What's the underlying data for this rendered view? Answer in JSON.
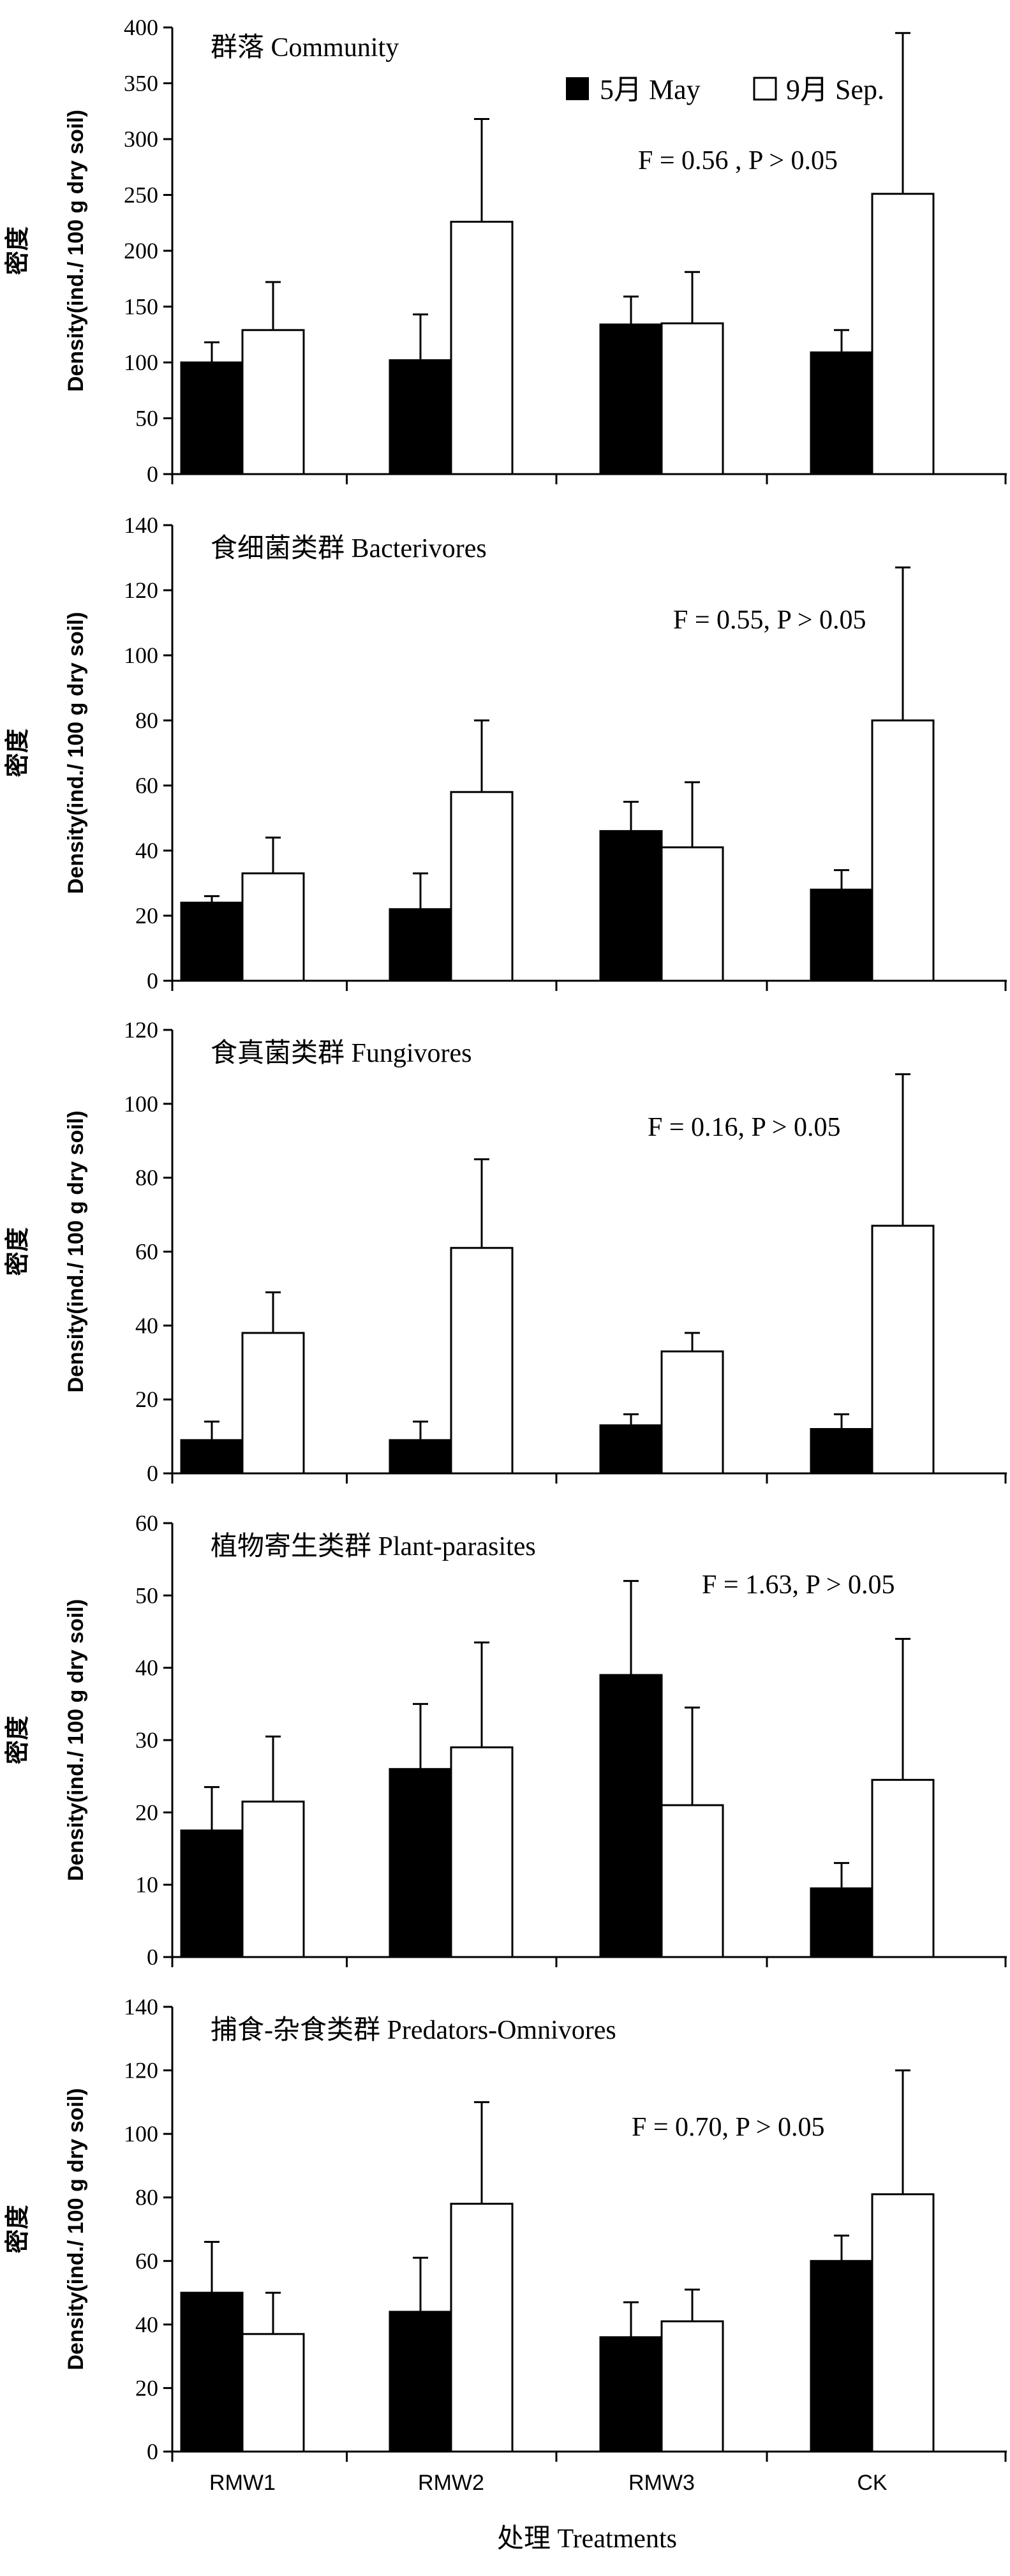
{
  "figure": {
    "legend": {
      "may_label": "5月 May",
      "sep_label": "9月 Sep."
    },
    "xlabel": "处理 Treatments",
    "ylabel_cn": "密度",
    "ylabel_en": "Density(ind./ 100 g dry soil)",
    "colors": {
      "may": "#000000",
      "sep": "#ffffff",
      "edge": "#000000"
    }
  },
  "chart_data": [
    {
      "type": "bar",
      "title": "群落 Community",
      "stat": "F = 0.56 , P > 0.05",
      "categories": [
        "RMW1",
        "RMW2",
        "RMW3",
        "CK"
      ],
      "ylim": [
        0,
        400
      ],
      "yticks": [
        0,
        50,
        100,
        150,
        200,
        250,
        300,
        350,
        400
      ],
      "series": [
        {
          "name": "5月 May",
          "values": [
            100,
            102,
            134,
            109
          ],
          "errors": [
            18,
            41,
            25,
            20
          ]
        },
        {
          "name": "9月 Sep.",
          "values": [
            129,
            226,
            135,
            251
          ],
          "errors": [
            43,
            92,
            46,
            144
          ]
        }
      ]
    },
    {
      "type": "bar",
      "title": "食细菌类群 Bacterivores",
      "stat": "F = 0.55, P > 0.05",
      "categories": [
        "RMW1",
        "RMW2",
        "RMW3",
        "CK"
      ],
      "ylim": [
        0,
        140
      ],
      "yticks": [
        0,
        20,
        40,
        60,
        80,
        100,
        120,
        140
      ],
      "series": [
        {
          "name": "5月 May",
          "values": [
            24,
            22,
            46,
            28
          ],
          "errors": [
            2,
            11,
            9,
            6
          ]
        },
        {
          "name": "9月 Sep.",
          "values": [
            33,
            58,
            41,
            80
          ],
          "errors": [
            11,
            22,
            20,
            47
          ]
        }
      ]
    },
    {
      "type": "bar",
      "title": "食真菌类群 Fungivores",
      "stat": "F = 0.16, P > 0.05",
      "categories": [
        "RMW1",
        "RMW2",
        "RMW3",
        "CK"
      ],
      "ylim": [
        0,
        120
      ],
      "yticks": [
        0,
        20,
        40,
        60,
        80,
        100,
        120
      ],
      "series": [
        {
          "name": "5月 May",
          "values": [
            9,
            9,
            13,
            12
          ],
          "errors": [
            5,
            5,
            3,
            4
          ]
        },
        {
          "name": "9月 Sep.",
          "values": [
            38,
            61,
            33,
            67
          ],
          "errors": [
            11,
            24,
            5,
            41
          ]
        }
      ]
    },
    {
      "type": "bar",
      "title": "植物寄生类群 Plant-parasites",
      "stat": "F = 1.63, P > 0.05",
      "categories": [
        "RMW1",
        "RMW2",
        "RMW3",
        "CK"
      ],
      "ylim": [
        0,
        60
      ],
      "yticks": [
        0,
        10,
        20,
        30,
        40,
        50,
        60
      ],
      "series": [
        {
          "name": "5月 May",
          "values": [
            17.5,
            26,
            39,
            9.5
          ],
          "errors": [
            6,
            9,
            13,
            3.5
          ]
        },
        {
          "name": "9月 Sep.",
          "values": [
            21.5,
            29,
            21,
            24.5
          ],
          "errors": [
            9,
            14.5,
            13.5,
            19.5
          ]
        }
      ]
    },
    {
      "type": "bar",
      "title": "捕食-杂食类群 Predators-Omnivores",
      "stat": "F = 0.70, P > 0.05",
      "categories": [
        "RMW1",
        "RMW2",
        "RMW3",
        "CK"
      ],
      "ylim": [
        0,
        140
      ],
      "yticks": [
        0,
        20,
        40,
        60,
        80,
        100,
        120,
        140
      ],
      "series": [
        {
          "name": "5月 May",
          "values": [
            50,
            44,
            36,
            60
          ],
          "errors": [
            16,
            17,
            11,
            8
          ]
        },
        {
          "name": "9月 Sep.",
          "values": [
            37,
            78,
            41,
            81
          ],
          "errors": [
            13,
            32,
            10,
            39
          ]
        }
      ]
    }
  ]
}
